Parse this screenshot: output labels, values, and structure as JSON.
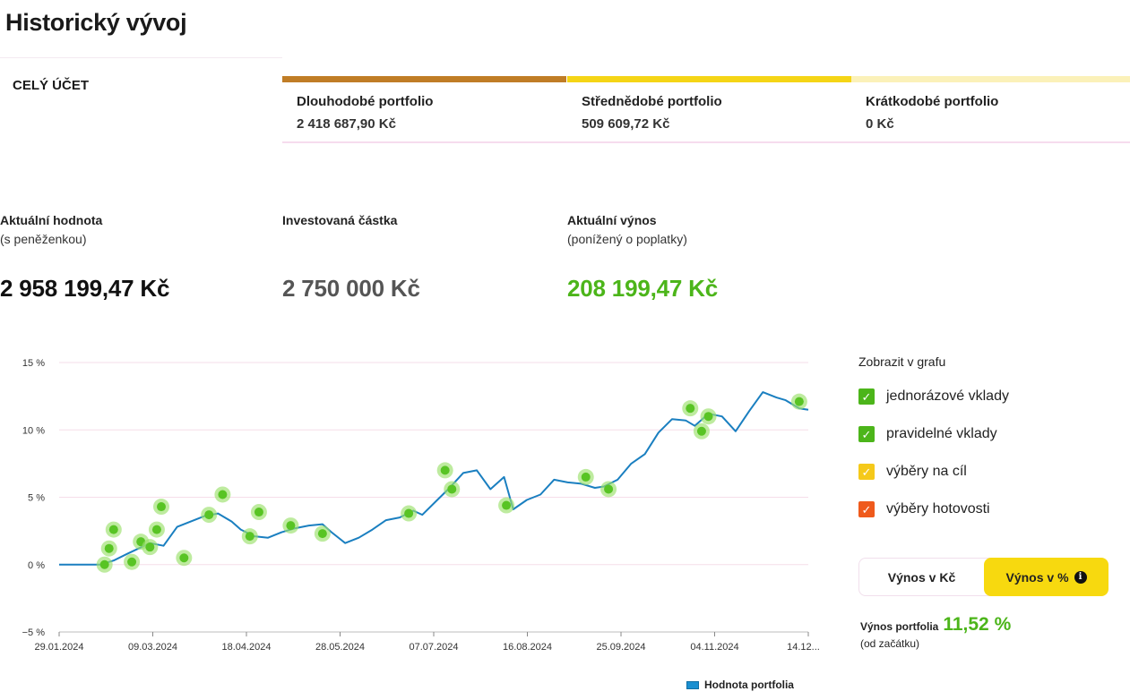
{
  "page": {
    "title": "Historický vývoj"
  },
  "account_tab": {
    "label": "CELÝ ÚČET"
  },
  "portfolios": [
    {
      "name": "Dlouhodobé portfolio",
      "value": "2 418 687,90 Kč",
      "color": "#c07d26"
    },
    {
      "name": "Střednědobé portfolio",
      "value": "509 609,72 Kč",
      "color": "#f5d516"
    },
    {
      "name": "Krátkodobé portfolio",
      "value": "0 Kč",
      "color": "#fbf1b9"
    }
  ],
  "stats": {
    "current": {
      "label": "Aktuální hodnota",
      "sub": "(s peněženkou)",
      "value": "2 958 199,47 Kč",
      "color": "#111111"
    },
    "invested": {
      "label": "Investovaná částka",
      "sub": "",
      "value": "2 750 000 Kč",
      "color": "#555555"
    },
    "yield": {
      "label": "Aktuální výnos",
      "sub": "(ponížený o poplatky)",
      "value": "208 199,47 Kč",
      "color": "#4cb51a"
    }
  },
  "chart_data": {
    "type": "line",
    "series": [
      {
        "name": "Hodnota portfolia",
        "color": "#1a7fc0",
        "x": [
          "2024-01-29",
          "2024-02-04",
          "2024-02-10",
          "2024-02-16",
          "2024-02-22",
          "2024-02-28",
          "2024-03-04",
          "2024-03-09",
          "2024-03-15",
          "2024-03-21",
          "2024-03-27",
          "2024-04-02",
          "2024-04-08",
          "2024-04-14",
          "2024-04-18",
          "2024-04-24",
          "2024-04-30",
          "2024-05-06",
          "2024-05-12",
          "2024-05-18",
          "2024-05-24",
          "2024-05-28",
          "2024-06-03",
          "2024-06-09",
          "2024-06-15",
          "2024-06-21",
          "2024-06-27",
          "2024-07-03",
          "2024-07-07",
          "2024-07-13",
          "2024-07-19",
          "2024-07-25",
          "2024-07-31",
          "2024-08-06",
          "2024-08-12",
          "2024-08-16",
          "2024-08-22",
          "2024-08-28",
          "2024-09-03",
          "2024-09-09",
          "2024-09-15",
          "2024-09-21",
          "2024-09-25",
          "2024-10-01",
          "2024-10-07",
          "2024-10-13",
          "2024-10-19",
          "2024-10-25",
          "2024-10-31",
          "2024-11-04",
          "2024-11-10",
          "2024-11-16",
          "2024-11-22",
          "2024-11-28",
          "2024-12-04",
          "2024-12-10",
          "2024-12-14",
          "2024-12-20",
          "2024-12-24"
        ],
        "y": [
          0.0,
          0.0,
          0.0,
          0.0,
          0.3,
          0.8,
          1.2,
          1.6,
          1.4,
          2.8,
          3.2,
          3.6,
          3.8,
          3.2,
          2.6,
          2.1,
          2.0,
          2.4,
          2.7,
          2.9,
          3.0,
          2.4,
          1.6,
          2.0,
          2.6,
          3.3,
          3.5,
          4.0,
          3.7,
          4.7,
          5.7,
          6.8,
          7.0,
          5.6,
          6.5,
          4.1,
          4.8,
          5.2,
          6.3,
          6.1,
          6.0,
          5.7,
          5.8,
          6.3,
          7.5,
          8.2,
          9.8,
          10.8,
          10.7,
          10.3,
          11.2,
          11.0,
          9.9,
          11.4,
          12.8,
          12.4,
          12.2,
          11.6,
          11.5
        ]
      }
    ],
    "events": [
      {
        "x": "2024-02-18",
        "y": 0.0
      },
      {
        "x": "2024-02-20",
        "y": 1.2
      },
      {
        "x": "2024-02-22",
        "y": 2.6
      },
      {
        "x": "2024-03-01",
        "y": 0.2
      },
      {
        "x": "2024-03-05",
        "y": 1.7
      },
      {
        "x": "2024-03-09",
        "y": 1.3
      },
      {
        "x": "2024-03-12",
        "y": 2.6
      },
      {
        "x": "2024-03-14",
        "y": 4.3
      },
      {
        "x": "2024-03-24",
        "y": 0.5
      },
      {
        "x": "2024-04-04",
        "y": 3.7
      },
      {
        "x": "2024-04-10",
        "y": 5.2
      },
      {
        "x": "2024-04-22",
        "y": 2.1
      },
      {
        "x": "2024-04-26",
        "y": 3.9
      },
      {
        "x": "2024-05-10",
        "y": 2.9
      },
      {
        "x": "2024-05-24",
        "y": 2.3
      },
      {
        "x": "2024-07-01",
        "y": 3.8
      },
      {
        "x": "2024-07-17",
        "y": 7.0
      },
      {
        "x": "2024-07-20",
        "y": 5.6
      },
      {
        "x": "2024-08-13",
        "y": 4.4
      },
      {
        "x": "2024-09-17",
        "y": 6.5
      },
      {
        "x": "2024-09-27",
        "y": 5.6
      },
      {
        "x": "2024-11-02",
        "y": 11.6
      },
      {
        "x": "2024-11-07",
        "y": 9.9
      },
      {
        "x": "2024-11-10",
        "y": 11.0
      },
      {
        "x": "2024-12-20",
        "y": 12.1
      }
    ],
    "ylim": [
      -5,
      15
    ],
    "yticks": [
      "15 %",
      "10 %",
      "5 %",
      "0 %",
      "−5 %"
    ],
    "ytick_values": [
      15,
      10,
      5,
      0,
      -5
    ],
    "xticks": [
      "29.01.2024",
      "09.03.2024",
      "18.04.2024",
      "28.05.2024",
      "07.07.2024",
      "16.08.2024",
      "25.09.2024",
      "04.11.2024",
      "14.12...."
    ],
    "grid": true,
    "legend_position": "bottom-right"
  },
  "legend": {
    "label": "Hodnota portfolia"
  },
  "options": {
    "title": "Zobrazit v grafu",
    "items": [
      {
        "label": "jednorázové vklady",
        "color": "#4cb51a",
        "checked": true
      },
      {
        "label": "pravidelné vklady",
        "color": "#4cb51a",
        "checked": true
      },
      {
        "label": "výběry na cíl",
        "color": "#f5c91a",
        "checked": true
      },
      {
        "label": "výběry hotovosti",
        "color": "#ef5a1c",
        "checked": true
      }
    ]
  },
  "toggle": {
    "option1": "Výnos v Kč",
    "option2": "Výnos v %",
    "info_icon": "info-icon"
  },
  "return_summary": {
    "label": "Výnos portfolia",
    "value": "11,52 %",
    "sub": "(od začátku)"
  }
}
